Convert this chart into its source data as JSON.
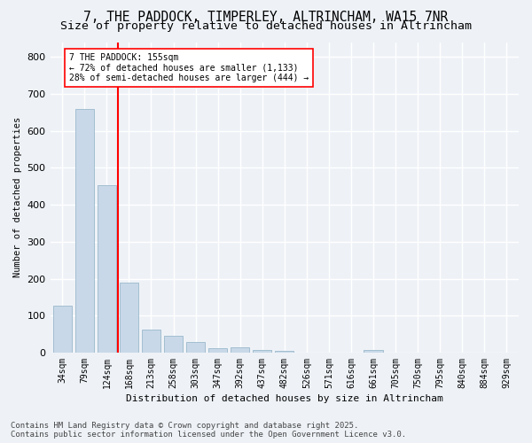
{
  "title": "7, THE PADDOCK, TIMPERLEY, ALTRINCHAM, WA15 7NR",
  "subtitle": "Size of property relative to detached houses in Altrincham",
  "xlabel": "Distribution of detached houses by size in Altrincham",
  "ylabel": "Number of detached properties",
  "categories": [
    "34sqm",
    "79sqm",
    "124sqm",
    "168sqm",
    "213sqm",
    "258sqm",
    "303sqm",
    "347sqm",
    "392sqm",
    "437sqm",
    "482sqm",
    "526sqm",
    "571sqm",
    "616sqm",
    "661sqm",
    "705sqm",
    "750sqm",
    "795sqm",
    "840sqm",
    "884sqm",
    "929sqm"
  ],
  "values": [
    127,
    660,
    452,
    190,
    63,
    46,
    28,
    12,
    14,
    7,
    4,
    0,
    0,
    0,
    6,
    0,
    0,
    0,
    0,
    0,
    0
  ],
  "bar_color": "#c8d8e8",
  "bar_edge_color": "#9ab8cc",
  "vline_color": "red",
  "vline_x_index": 2.5,
  "annotation_text": "7 THE PADDOCK: 155sqm\n← 72% of detached houses are smaller (1,133)\n28% of semi-detached houses are larger (444) →",
  "annotation_box_color": "white",
  "annotation_box_edge_color": "red",
  "ylim": [
    0,
    840
  ],
  "yticks": [
    0,
    100,
    200,
    300,
    400,
    500,
    600,
    700,
    800
  ],
  "background_color": "#eef2f7",
  "plot_bg_color": "#eef2f7",
  "grid_color": "white",
  "title_fontsize": 10.5,
  "subtitle_fontsize": 9.5,
  "footnote": "Contains HM Land Registry data © Crown copyright and database right 2025.\nContains public sector information licensed under the Open Government Licence v3.0.",
  "footnote_fontsize": 6.5
}
